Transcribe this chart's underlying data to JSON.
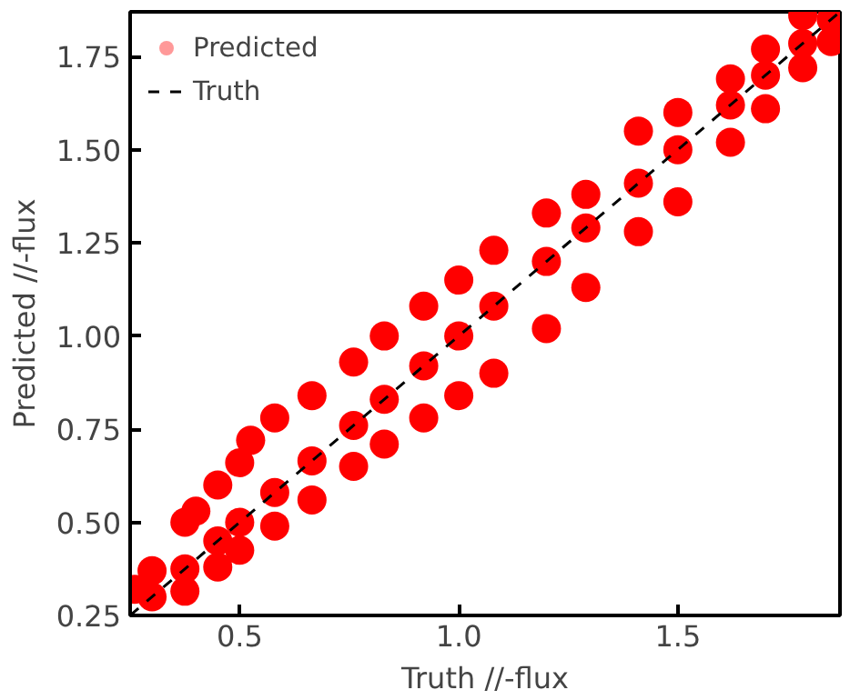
{
  "chart_data": {
    "type": "scatter",
    "xlabel": "Truth //-flux",
    "ylabel": "Predicted //-flux",
    "xlim": [
      0.25,
      1.87
    ],
    "ylim": [
      0.25,
      1.87
    ],
    "xticks": [
      0.5,
      {
        "value": 1.0,
        "label": "1.0"
      },
      1.5
    ],
    "yticks": [
      0.25,
      {
        "value": 0.5,
        "label": "0.50"
      },
      0.75,
      {
        "value": 1.0,
        "label": "1.00"
      },
      1.25,
      {
        "value": 1.5,
        "label": "1.50"
      },
      1.75
    ],
    "grid": false,
    "legend": "top left",
    "series": [
      {
        "name": "Predicted",
        "marker": "circle",
        "color": "#ff0000",
        "x": [
          0.26,
          0.3,
          0.3,
          0.375,
          0.375,
          0.375,
          0.4,
          0.45,
          0.45,
          0.45,
          0.5,
          0.5,
          0.5,
          0.525,
          0.58,
          0.58,
          0.58,
          0.665,
          0.665,
          0.665,
          0.76,
          0.76,
          0.76,
          0.83,
          0.83,
          0.83,
          0.92,
          0.92,
          0.92,
          1.0,
          1.0,
          1.0,
          1.08,
          1.08,
          1.08,
          1.2,
          1.2,
          1.2,
          1.29,
          1.29,
          1.29,
          1.41,
          1.41,
          1.41,
          1.5,
          1.5,
          1.5,
          1.62,
          1.62,
          1.62,
          1.7,
          1.7,
          1.7,
          1.785,
          1.785,
          1.785,
          1.85,
          1.85
        ],
        "values": [
          0.32,
          0.3,
          0.37,
          0.315,
          0.375,
          0.5,
          0.53,
          0.38,
          0.45,
          0.6,
          0.425,
          0.5,
          0.66,
          0.72,
          0.49,
          0.58,
          0.78,
          0.56,
          0.665,
          0.84,
          0.65,
          0.76,
          0.93,
          0.71,
          0.83,
          1.0,
          0.78,
          0.92,
          1.08,
          0.84,
          1.0,
          1.15,
          0.9,
          1.08,
          1.23,
          1.02,
          1.2,
          1.33,
          1.13,
          1.29,
          1.38,
          1.28,
          1.41,
          1.55,
          1.36,
          1.5,
          1.6,
          1.52,
          1.62,
          1.69,
          1.61,
          1.7,
          1.77,
          1.72,
          1.785,
          1.86,
          1.79,
          1.85
        ]
      },
      {
        "name": "Truth",
        "type": "line",
        "color": "#000000",
        "line_style": "dashed",
        "x": [
          0.25,
          1.87
        ],
        "values": [
          0.25,
          1.87
        ]
      }
    ]
  }
}
